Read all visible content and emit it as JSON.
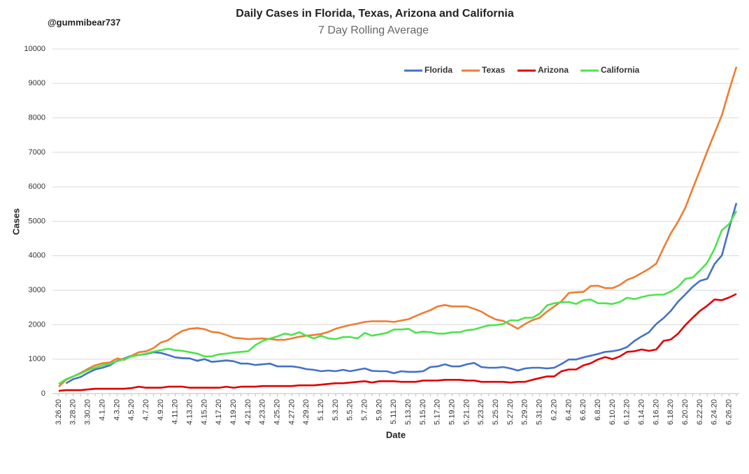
{
  "chart_data": {
    "type": "line",
    "title": "Daily Cases in Florida, Texas, Arizona and California",
    "subtitle": "7 Day Rolling Average",
    "annotation": "@gummibear737",
    "x_label": "Date",
    "y_label": "Cases",
    "categories": [
      "3.26.20",
      null,
      "3.28.20",
      null,
      "3.30.20",
      null,
      "4.1.20",
      null,
      "4.3.20",
      null,
      "4.5.20",
      null,
      "4.7.20",
      null,
      "4.9.20",
      null,
      "4.11.20",
      null,
      "4.13.20",
      null,
      "4.15.20",
      null,
      "4.17.20",
      null,
      "4.19.20",
      null,
      "4.21.20",
      null,
      "4.23.20",
      null,
      "4.25.20",
      null,
      "4.27.20",
      null,
      "4.29.20",
      null,
      "5.1.20",
      null,
      "5.3.20",
      null,
      "5.5.20",
      null,
      "5.7.20",
      null,
      "5.9.20",
      null,
      "5.11.20",
      null,
      "5.13.20",
      null,
      "5.15.20",
      null,
      "5.17.20",
      null,
      "5.19.20",
      null,
      "5.21.20",
      null,
      "5.23.20",
      null,
      "5.25.20",
      null,
      "5.27.20",
      null,
      "5.29.20",
      null,
      "5.31.20",
      null,
      "6.2.20",
      null,
      "6.4.20",
      null,
      "6.6.20",
      null,
      "6.8.20",
      null,
      "6.10.20",
      null,
      "6.12.20",
      null,
      "6.14.20",
      null,
      "6.16.20",
      null,
      "6.18.20",
      null,
      "6.20.20",
      null,
      "6.22.20",
      null,
      "6.24.20",
      null,
      "6.26.20",
      null
    ],
    "series": [
      {
        "name": "Florida",
        "color": "#4472c4",
        "values": [
          null,
          300,
          420,
          480,
          600,
          700,
          750,
          820,
          950,
          1020,
          1100,
          1120,
          1150,
          1200,
          1180,
          1120,
          1050,
          1030,
          1020,
          950,
          1000,
          920,
          940,
          960,
          940,
          870,
          870,
          830,
          850,
          870,
          790,
          790,
          790,
          760,
          710,
          690,
          650,
          670,
          650,
          690,
          650,
          690,
          730,
          660,
          650,
          650,
          590,
          650,
          630,
          630,
          650,
          770,
          790,
          850,
          790,
          790,
          850,
          890,
          770,
          750,
          750,
          770,
          730,
          670,
          730,
          750,
          750,
          730,
          750,
          860,
          990,
          990,
          1050,
          1100,
          1150,
          1210,
          1230,
          1270,
          1350,
          1530,
          1660,
          1780,
          2020,
          2190,
          2400,
          2670,
          2880,
          3100,
          3270,
          3330,
          3760,
          4010,
          4800,
          5530
        ]
      },
      {
        "name": "Texas",
        "color": "#ed7d31",
        "values": [
          200,
          400,
          500,
          600,
          720,
          820,
          880,
          900,
          1020,
          980,
          1100,
          1200,
          1230,
          1320,
          1480,
          1550,
          1700,
          1820,
          1880,
          1900,
          1870,
          1790,
          1770,
          1700,
          1620,
          1600,
          1580,
          1590,
          1600,
          1580,
          1560,
          1560,
          1600,
          1650,
          1680,
          1700,
          1730,
          1790,
          1880,
          1940,
          1990,
          2030,
          2080,
          2100,
          2100,
          2100,
          2080,
          2120,
          2160,
          2250,
          2340,
          2420,
          2530,
          2570,
          2530,
          2530,
          2530,
          2460,
          2380,
          2250,
          2150,
          2110,
          2000,
          1880,
          2020,
          2130,
          2200,
          2380,
          2530,
          2680,
          2920,
          2940,
          2950,
          3120,
          3130,
          3060,
          3060,
          3150,
          3300,
          3380,
          3500,
          3620,
          3770,
          4230,
          4650,
          4990,
          5400,
          5950,
          6480,
          7030,
          7550,
          8080,
          8800,
          9480
        ]
      },
      {
        "name": "Arizona",
        "color": "#e00000",
        "values": [
          80,
          100,
          100,
          100,
          120,
          140,
          140,
          140,
          140,
          140,
          160,
          200,
          170,
          170,
          170,
          200,
          200,
          200,
          170,
          170,
          170,
          170,
          170,
          200,
          170,
          200,
          200,
          200,
          220,
          220,
          220,
          220,
          220,
          240,
          240,
          240,
          260,
          280,
          300,
          300,
          320,
          340,
          360,
          320,
          360,
          360,
          360,
          340,
          340,
          340,
          380,
          380,
          380,
          400,
          400,
          400,
          380,
          380,
          340,
          340,
          340,
          340,
          320,
          340,
          340,
          400,
          450,
          500,
          500,
          650,
          700,
          700,
          820,
          880,
          990,
          1060,
          1000,
          1080,
          1210,
          1230,
          1280,
          1240,
          1280,
          1530,
          1570,
          1740,
          1990,
          2200,
          2400,
          2550,
          2730,
          2710,
          2790,
          2890
        ]
      },
      {
        "name": "California",
        "color": "#4de34d",
        "values": [
          280,
          420,
          500,
          580,
          680,
          750,
          820,
          860,
          940,
          1000,
          1080,
          1120,
          1160,
          1220,
          1260,
          1300,
          1260,
          1240,
          1200,
          1160,
          1080,
          1080,
          1140,
          1160,
          1190,
          1210,
          1230,
          1410,
          1530,
          1600,
          1660,
          1740,
          1700,
          1780,
          1680,
          1600,
          1680,
          1600,
          1580,
          1640,
          1640,
          1600,
          1760,
          1680,
          1720,
          1760,
          1860,
          1860,
          1880,
          1760,
          1800,
          1780,
          1740,
          1740,
          1780,
          1780,
          1840,
          1860,
          1920,
          1980,
          1990,
          2020,
          2130,
          2120,
          2200,
          2200,
          2320,
          2560,
          2620,
          2650,
          2660,
          2600,
          2710,
          2730,
          2620,
          2620,
          2600,
          2660,
          2780,
          2740,
          2800,
          2850,
          2870,
          2870,
          2960,
          3100,
          3330,
          3370,
          3570,
          3800,
          4200,
          4740,
          4920,
          5300
        ]
      }
    ],
    "ylim": [
      0,
      10000
    ],
    "yticks": [
      0,
      1000,
      2000,
      3000,
      4000,
      5000,
      6000,
      7000,
      8000,
      9000,
      10000
    ],
    "grid": true,
    "legend": "top"
  }
}
